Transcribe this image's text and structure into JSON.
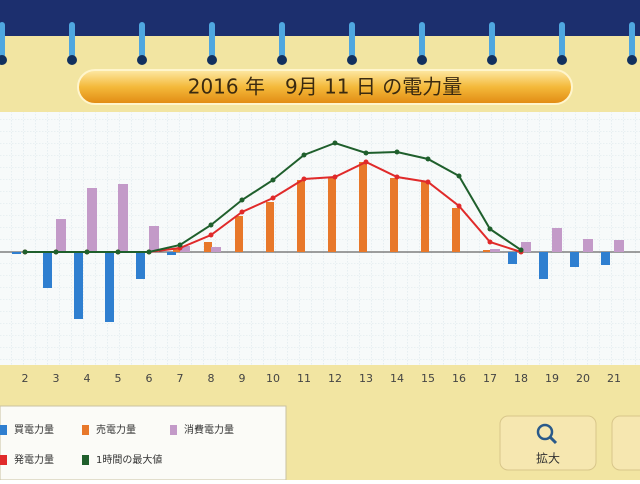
{
  "chart_data": {
    "type": "bar",
    "title": "2016 年　9月 11 日 の電力量",
    "categories": [
      "2",
      "3",
      "4",
      "5",
      "6",
      "7",
      "8",
      "9",
      "10",
      "11",
      "12",
      "13",
      "14",
      "15",
      "16",
      "17",
      "18",
      "19",
      "20",
      "21"
    ],
    "ylim": [
      -1.13,
      1.4
    ],
    "series": [
      {
        "name": "買電力量",
        "type": "bar",
        "color": "#2f7fd0",
        "values": [
          -0.02,
          -0.36,
          -0.67,
          -0.7,
          -0.27,
          -0.03,
          0,
          0,
          0,
          0,
          0,
          0,
          0,
          0,
          0,
          0,
          -0.12,
          -0.27,
          -0.15,
          -0.13
        ]
      },
      {
        "name": "売電力量",
        "type": "bar",
        "color": "#e8782a",
        "values": [
          0,
          0,
          0,
          0,
          0,
          0.03,
          0.1,
          0.36,
          0.5,
          0.72,
          0.74,
          0.9,
          0.74,
          0.7,
          0.44,
          0.02,
          0,
          0,
          0,
          0
        ]
      },
      {
        "name": "消費電力量",
        "type": "bar",
        "color": "#c39ac8",
        "values": [
          0,
          0.33,
          0.64,
          0.68,
          0.26,
          0.06,
          0.05,
          0,
          0,
          0,
          0,
          0,
          0,
          0,
          0,
          0.03,
          0.1,
          0.24,
          0.13,
          0.12
        ]
      },
      {
        "name": "発電力量",
        "type": "line",
        "color": "#e02a2a",
        "values": [
          0,
          0,
          0,
          0,
          0,
          0.04,
          0.17,
          0.4,
          0.54,
          0.73,
          0.75,
          0.9,
          0.75,
          0.7,
          0.46,
          0.1,
          0,
          null,
          null,
          null
        ]
      },
      {
        "name": "1時間の最大値",
        "type": "line",
        "color": "#1f5f2c",
        "values": [
          0,
          0,
          0,
          0,
          0,
          0.07,
          0.27,
          0.52,
          0.72,
          0.97,
          1.09,
          0.99,
          1.0,
          0.93,
          0.76,
          0.23,
          0.02,
          null,
          null,
          null
        ]
      }
    ]
  },
  "ui": {
    "zoom_button": "拡大"
  }
}
